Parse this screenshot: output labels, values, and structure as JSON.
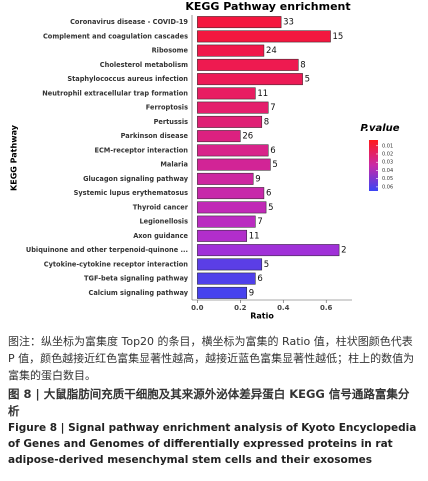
{
  "chart_data": {
    "type": "barh",
    "title": "KEGG Pathway enrichment",
    "x_label": "Ratio",
    "y_label": "KEGG Pathway",
    "categories": [
      "Coronavirus disease - COVID-19",
      "Complement and coagulation cascades",
      "Ribosome",
      "Cholesterol metabolism",
      "Staphylococcus aureus infection",
      "Neutrophil extracellular trap formation",
      "Ferroptosis",
      "Pertussis",
      "Parkinson disease",
      "ECM-receptor interaction",
      "Malaria",
      "Glucagon signaling pathway",
      "Systemic lupus erythematosus",
      "Thyroid cancer",
      "Legionellosis",
      "Axon guidance",
      "Ubiquinone and other terpenoid-quinone ...",
      "Cytokine-cytokine receptor interaction",
      "TGF-beta signaling pathway",
      "Calcium signaling pathway"
    ],
    "values": [
      0.39,
      0.62,
      0.31,
      0.47,
      0.49,
      0.27,
      0.33,
      0.3,
      0.2,
      0.33,
      0.34,
      0.26,
      0.31,
      0.32,
      0.27,
      0.23,
      0.66,
      0.3,
      0.27,
      0.23
    ],
    "counts": [
      33,
      15,
      24,
      8,
      5,
      11,
      7,
      8,
      26,
      6,
      5,
      9,
      6,
      5,
      7,
      11,
      2,
      5,
      6,
      9
    ],
    "colors": [
      "#f5163e",
      "#f2173f",
      "#f0184a",
      "#ee1a50",
      "#ec1b56",
      "#e81d62",
      "#e41e6c",
      "#e02075",
      "#dc2180",
      "#d8238a",
      "#d22496",
      "#cd26a0",
      "#c728aa",
      "#c02ab6",
      "#ba2cc0",
      "#b22ecb",
      "#a031d8",
      "#5b3ee6",
      "#4f40ea",
      "#4742ee"
    ],
    "xlim": [
      -0.025,
      0.72
    ],
    "xticks": [
      {
        "value": 0,
        "label": "0.0"
      },
      0.2,
      0.4,
      0.6
    ],
    "legend_title": "P.value",
    "legend_ticks": [
      0.01,
      0.02,
      0.03,
      0.04,
      0.05,
      0.06
    ],
    "legend_lim": [
      0.003,
      0.065
    ]
  },
  "caption": {
    "note": "图注：纵坐标为富集度 Top20 的条目，横坐标为富集的 Ratio 值，柱状图颜色代表 P 值，颜色越接近红色富集显著性越高，越接近蓝色富集显著性越低；柱上的数值为富集的蛋白数目。",
    "title_cn": "图 8 | 大鼠脂肪间充质干细胞及其来源外泌体差异蛋白 KEGG 信号通路富集分析",
    "title_en": "Figure 8 | Signal pathway enrichment analysis of Kyoto Encyclopedia of Genes and Genomes of differentially expressed proteins in rat adipose-derived mesenchymal stem cells and their exosomes"
  }
}
